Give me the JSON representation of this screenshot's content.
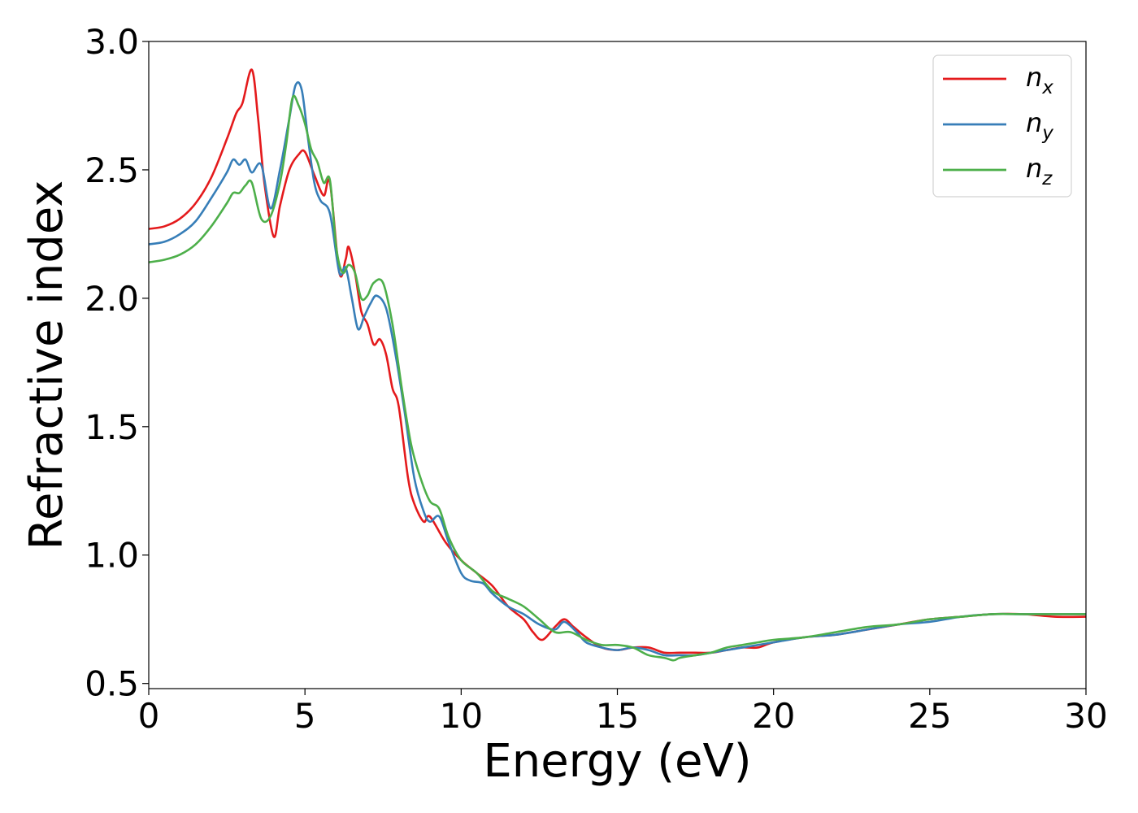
{
  "chart_data": {
    "type": "line",
    "xlabel": "Energy (eV)",
    "ylabel": "Refractive index",
    "xlim": [
      0,
      30
    ],
    "ylim": [
      0.48,
      3.0
    ],
    "xticks": [
      0,
      5,
      10,
      15,
      20,
      25,
      30
    ],
    "xtick_labels": [
      "0",
      "5",
      "10",
      "15",
      "20",
      "25",
      "30"
    ],
    "yticks": [
      0.5,
      1.0,
      1.5,
      2.0,
      2.5,
      3.0
    ],
    "ytick_labels": [
      "0.5",
      "1.0",
      "1.5",
      "2.0",
      "2.5",
      "3.0"
    ],
    "grid": false,
    "legend_position": "top-right",
    "series": [
      {
        "name": "n_x",
        "label_main": "n",
        "label_sub": "x",
        "color": "#e41a1c",
        "x": [
          0,
          0.5,
          1,
          1.5,
          2,
          2.5,
          2.8,
          3.0,
          3.3,
          3.5,
          3.7,
          4.0,
          4.2,
          4.5,
          4.8,
          5.0,
          5.3,
          5.6,
          5.8,
          6.1,
          6.3,
          6.4,
          6.6,
          6.8,
          7.0,
          7.2,
          7.4,
          7.6,
          7.8,
          8.0,
          8.3,
          8.5,
          8.8,
          9.0,
          9.5,
          10.0,
          10.5,
          11.0,
          11.5,
          12.0,
          12.3,
          12.6,
          13.0,
          13.3,
          13.6,
          14.0,
          14.5,
          15.0,
          15.5,
          16.0,
          16.5,
          17.0,
          17.5,
          18.0,
          18.5,
          19.0,
          19.5,
          20.0,
          21.0,
          22.0,
          23.0,
          24.0,
          25.0,
          26.0,
          27.0,
          28.0,
          29.0,
          30.0
        ],
        "y": [
          2.27,
          2.28,
          2.31,
          2.37,
          2.47,
          2.62,
          2.72,
          2.76,
          2.89,
          2.7,
          2.45,
          2.24,
          2.36,
          2.5,
          2.56,
          2.57,
          2.48,
          2.4,
          2.45,
          2.1,
          2.15,
          2.2,
          2.1,
          1.95,
          1.9,
          1.82,
          1.84,
          1.78,
          1.65,
          1.58,
          1.3,
          1.2,
          1.13,
          1.15,
          1.05,
          0.98,
          0.93,
          0.88,
          0.8,
          0.75,
          0.7,
          0.67,
          0.72,
          0.75,
          0.72,
          0.68,
          0.64,
          0.63,
          0.64,
          0.64,
          0.62,
          0.62,
          0.62,
          0.62,
          0.63,
          0.64,
          0.64,
          0.66,
          0.68,
          0.69,
          0.71,
          0.73,
          0.75,
          0.76,
          0.77,
          0.77,
          0.76,
          0.76
        ]
      },
      {
        "name": "n_y",
        "label_main": "n",
        "label_sub": "y",
        "color": "#377eb8",
        "x": [
          0,
          0.5,
          1,
          1.5,
          2,
          2.5,
          2.7,
          2.9,
          3.1,
          3.3,
          3.6,
          3.9,
          4.2,
          4.5,
          4.7,
          4.9,
          5.1,
          5.3,
          5.5,
          5.8,
          6.1,
          6.3,
          6.5,
          6.7,
          6.9,
          7.1,
          7.3,
          7.6,
          7.9,
          8.2,
          8.5,
          8.8,
          9.0,
          9.3,
          9.6,
          10.0,
          10.3,
          10.7,
          11.0,
          11.5,
          12.0,
          12.5,
          13.0,
          13.3,
          13.7,
          14.0,
          14.5,
          15.0,
          15.5,
          16.0,
          16.5,
          17.0,
          17.5,
          18.0,
          18.5,
          19.0,
          19.5,
          20.0,
          21.0,
          22.0,
          23.0,
          24.0,
          25.0,
          26.0,
          27.0,
          28.0,
          29.0,
          30.0
        ],
        "y": [
          2.21,
          2.22,
          2.25,
          2.3,
          2.39,
          2.49,
          2.54,
          2.52,
          2.54,
          2.49,
          2.52,
          2.35,
          2.5,
          2.7,
          2.83,
          2.81,
          2.62,
          2.45,
          2.38,
          2.33,
          2.1,
          2.12,
          2.0,
          1.88,
          1.93,
          1.98,
          2.01,
          1.96,
          1.78,
          1.55,
          1.3,
          1.17,
          1.13,
          1.15,
          1.05,
          0.93,
          0.9,
          0.89,
          0.85,
          0.8,
          0.77,
          0.73,
          0.71,
          0.74,
          0.7,
          0.66,
          0.64,
          0.63,
          0.64,
          0.63,
          0.61,
          0.61,
          0.61,
          0.62,
          0.63,
          0.64,
          0.65,
          0.66,
          0.68,
          0.69,
          0.71,
          0.73,
          0.74,
          0.76,
          0.77,
          0.77,
          0.77,
          0.77
        ]
      },
      {
        "name": "n_z",
        "label_main": "n",
        "label_sub": "z",
        "color": "#4daf4a",
        "x": [
          0,
          0.5,
          1,
          1.5,
          2,
          2.5,
          2.7,
          2.9,
          3.1,
          3.3,
          3.6,
          3.9,
          4.2,
          4.4,
          4.6,
          4.8,
          5.0,
          5.2,
          5.4,
          5.6,
          5.8,
          6.0,
          6.2,
          6.4,
          6.6,
          6.8,
          7.0,
          7.2,
          7.5,
          7.8,
          8.1,
          8.4,
          8.7,
          9.0,
          9.3,
          9.6,
          10.0,
          10.5,
          11.0,
          11.5,
          12.0,
          12.5,
          13.0,
          13.5,
          14.0,
          14.5,
          15.0,
          15.5,
          16.0,
          16.5,
          16.8,
          17.0,
          17.5,
          18.0,
          18.5,
          19.0,
          19.5,
          20.0,
          21.0,
          22.0,
          23.0,
          24.0,
          25.0,
          26.0,
          27.0,
          28.0,
          29.0,
          30.0
        ],
        "y": [
          2.14,
          2.15,
          2.17,
          2.21,
          2.28,
          2.37,
          2.41,
          2.41,
          2.44,
          2.45,
          2.31,
          2.32,
          2.45,
          2.6,
          2.78,
          2.75,
          2.68,
          2.58,
          2.53,
          2.45,
          2.46,
          2.2,
          2.1,
          2.13,
          2.1,
          2.0,
          2.01,
          2.06,
          2.06,
          1.9,
          1.65,
          1.43,
          1.3,
          1.21,
          1.18,
          1.07,
          0.98,
          0.93,
          0.86,
          0.83,
          0.8,
          0.75,
          0.7,
          0.7,
          0.67,
          0.65,
          0.65,
          0.64,
          0.61,
          0.6,
          0.59,
          0.6,
          0.61,
          0.62,
          0.64,
          0.65,
          0.66,
          0.67,
          0.68,
          0.7,
          0.72,
          0.73,
          0.75,
          0.76,
          0.77,
          0.77,
          0.77,
          0.77
        ]
      }
    ]
  }
}
